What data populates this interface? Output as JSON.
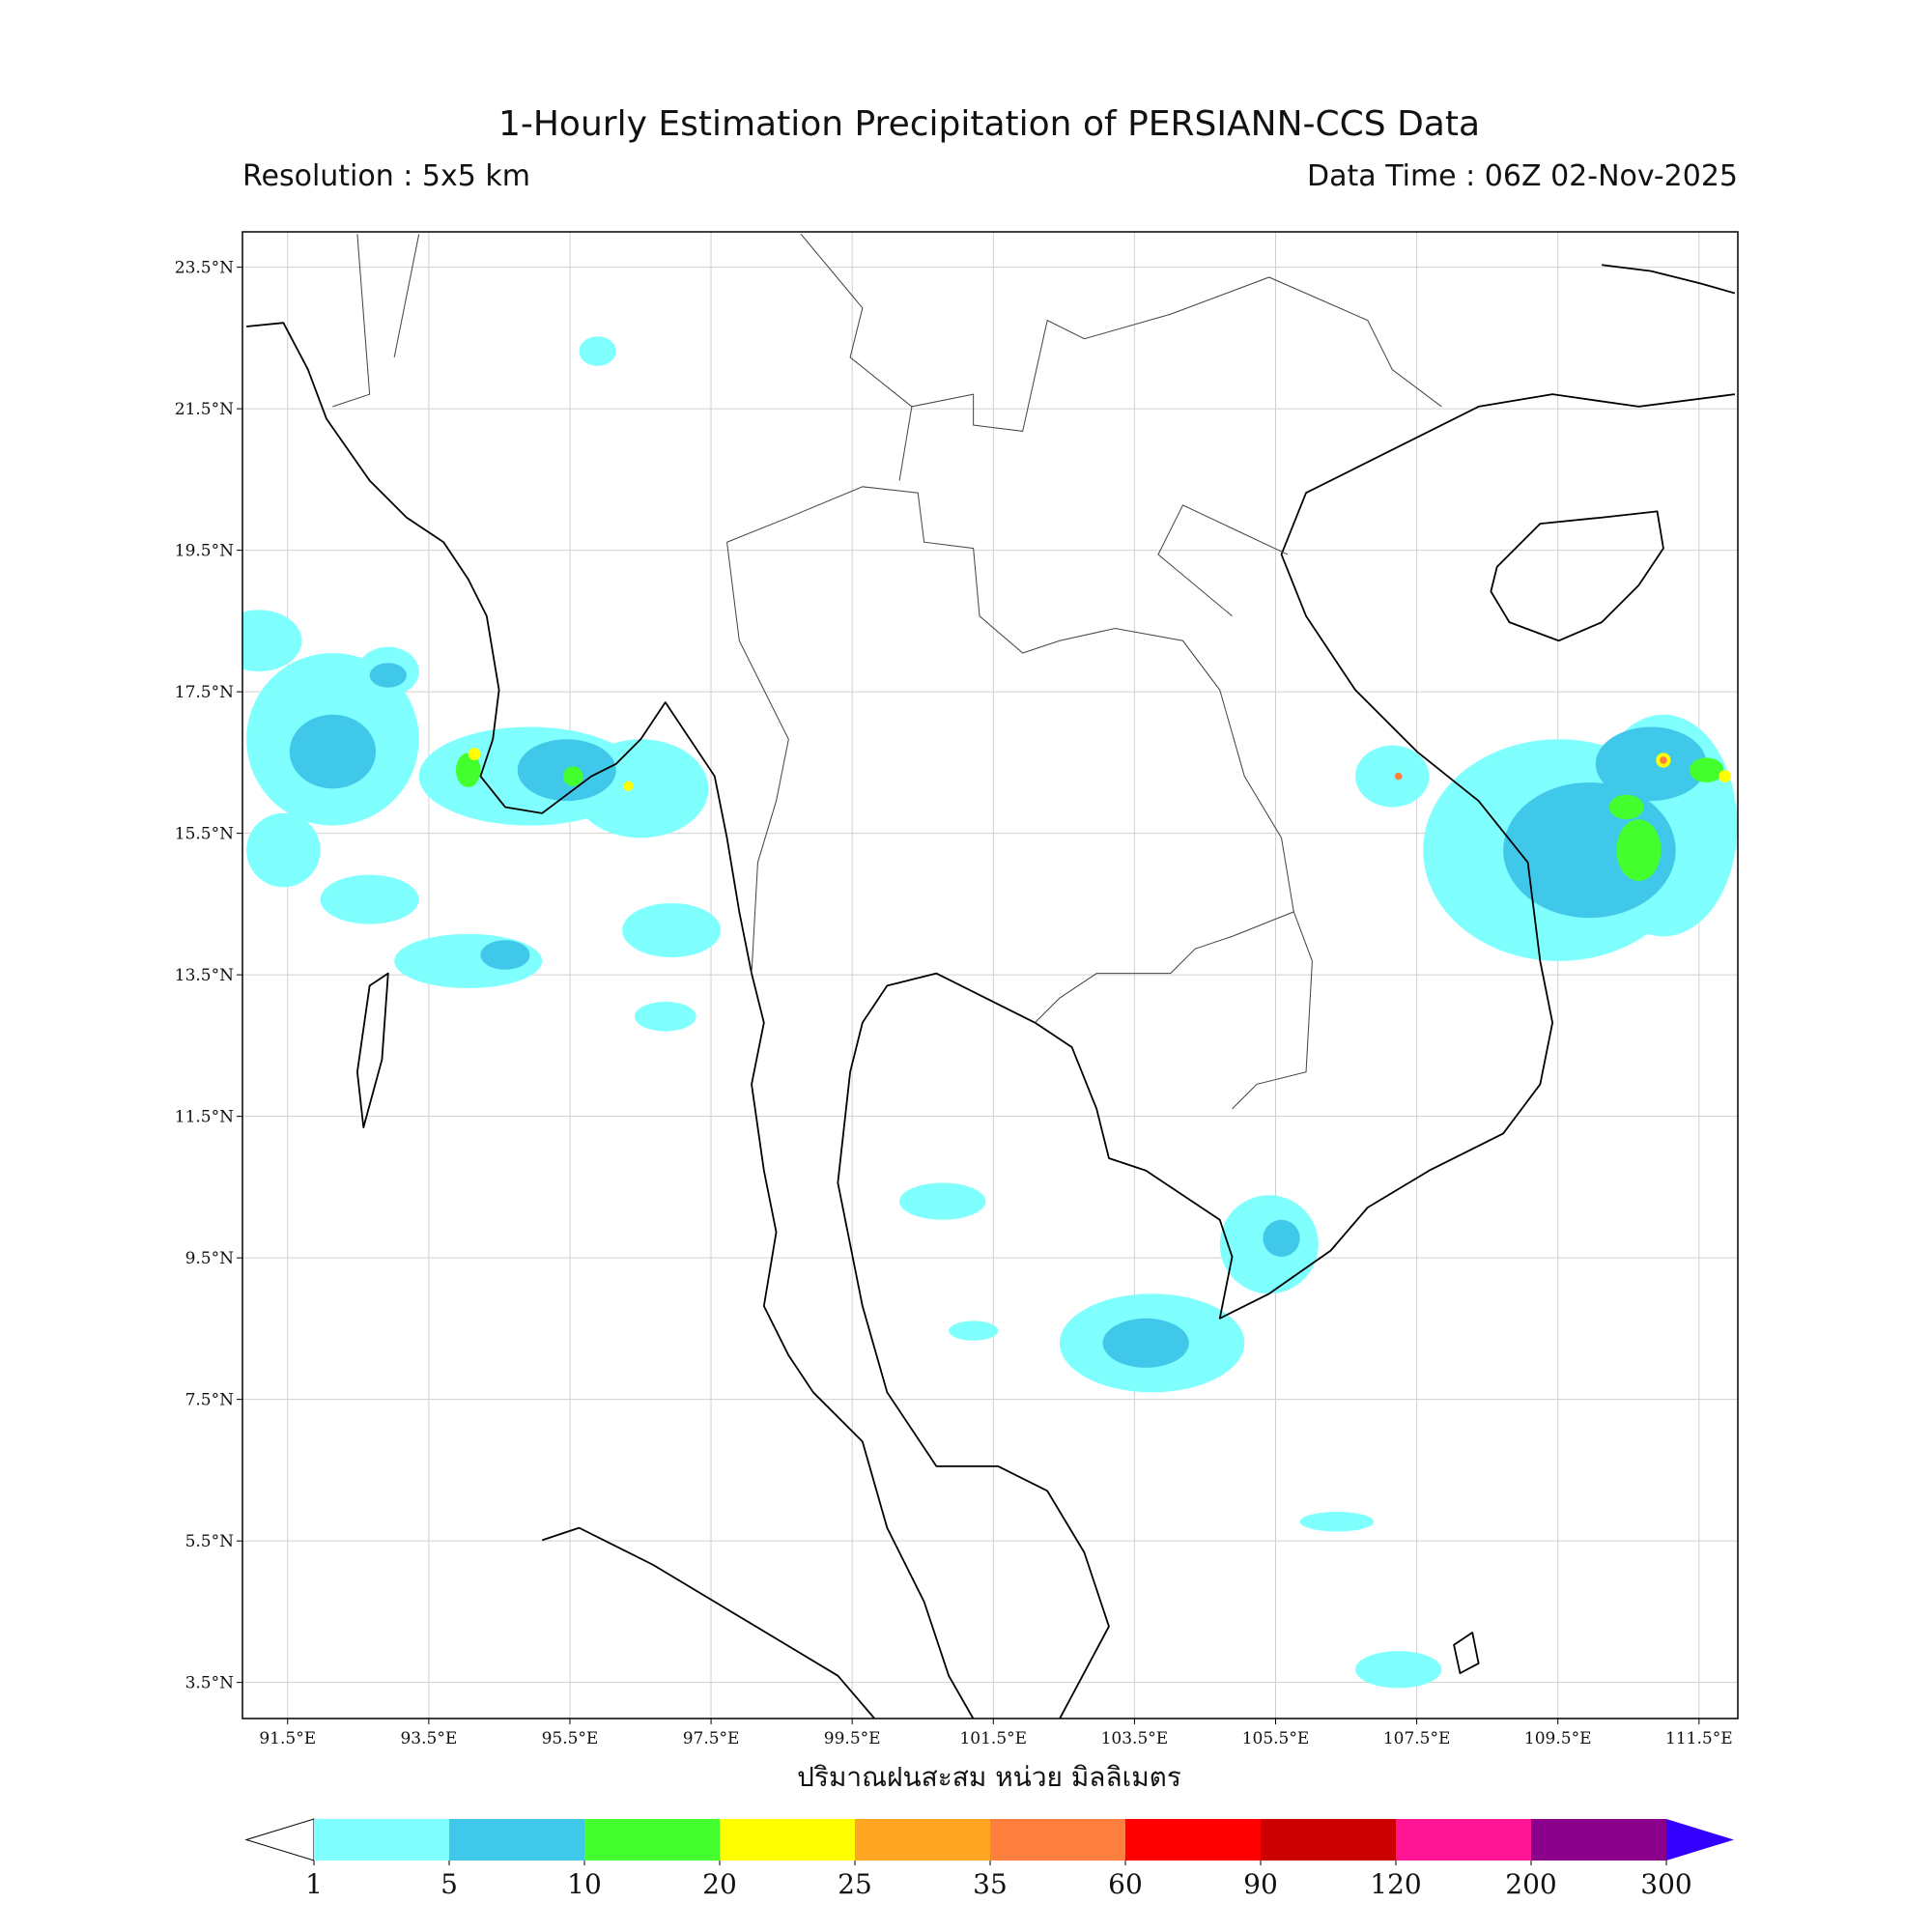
{
  "title": "1-Hourly Estimation Precipitation of PERSIANN-CCS Data",
  "subtitle_left": "Resolution : 5x5 km",
  "subtitle_right": "Data Time : 06Z 02-Nov-2025",
  "map": {
    "xlim": [
      90.86,
      112.05
    ],
    "ylim": [
      2.99,
      24.0
    ],
    "grid": true,
    "xticks": [
      {
        "value": 91.5,
        "label": "91.5°E"
      },
      {
        "value": 93.5,
        "label": "93.5°E"
      },
      {
        "value": 95.5,
        "label": "95.5°E"
      },
      {
        "value": 97.5,
        "label": "97.5°E"
      },
      {
        "value": 99.5,
        "label": "99.5°E"
      },
      {
        "value": 101.5,
        "label": "101.5°E"
      },
      {
        "value": 103.5,
        "label": "103.5°E"
      },
      {
        "value": 105.5,
        "label": "105.5°E"
      },
      {
        "value": 107.5,
        "label": "107.5°E"
      },
      {
        "value": 109.5,
        "label": "109.5°E"
      },
      {
        "value": 111.5,
        "label": "111.5°E"
      }
    ],
    "yticks": [
      {
        "value": 3.5,
        "label": "3.5°N"
      },
      {
        "value": 5.5,
        "label": "5.5°N"
      },
      {
        "value": 7.5,
        "label": "7.5°N"
      },
      {
        "value": 9.5,
        "label": "9.5°N"
      },
      {
        "value": 11.5,
        "label": "11.5°N"
      },
      {
        "value": 13.5,
        "label": "13.5°N"
      },
      {
        "value": 15.5,
        "label": "15.5°N"
      },
      {
        "value": 17.5,
        "label": "17.5°N"
      },
      {
        "value": 19.5,
        "label": "19.5°N"
      },
      {
        "value": 21.5,
        "label": "21.5°N"
      },
      {
        "value": 23.5,
        "label": "23.5°N"
      }
    ]
  },
  "xlabel": "ปริมาณฝนสะสม หน่วย มิลลิเมตร",
  "colorbar": {
    "levels": [
      1,
      5,
      10,
      20,
      25,
      35,
      60,
      90,
      120,
      200,
      300
    ],
    "colors": [
      "#80ffff",
      "#40c8ea",
      "#44ff2e",
      "#ffff00",
      "#ffa521",
      "#ff7f3f",
      "#ff0000",
      "#cc0000",
      "#ff1493",
      "#8b008b"
    ],
    "under_color": "#ffffff",
    "over_color": "#3300ff"
  }
}
